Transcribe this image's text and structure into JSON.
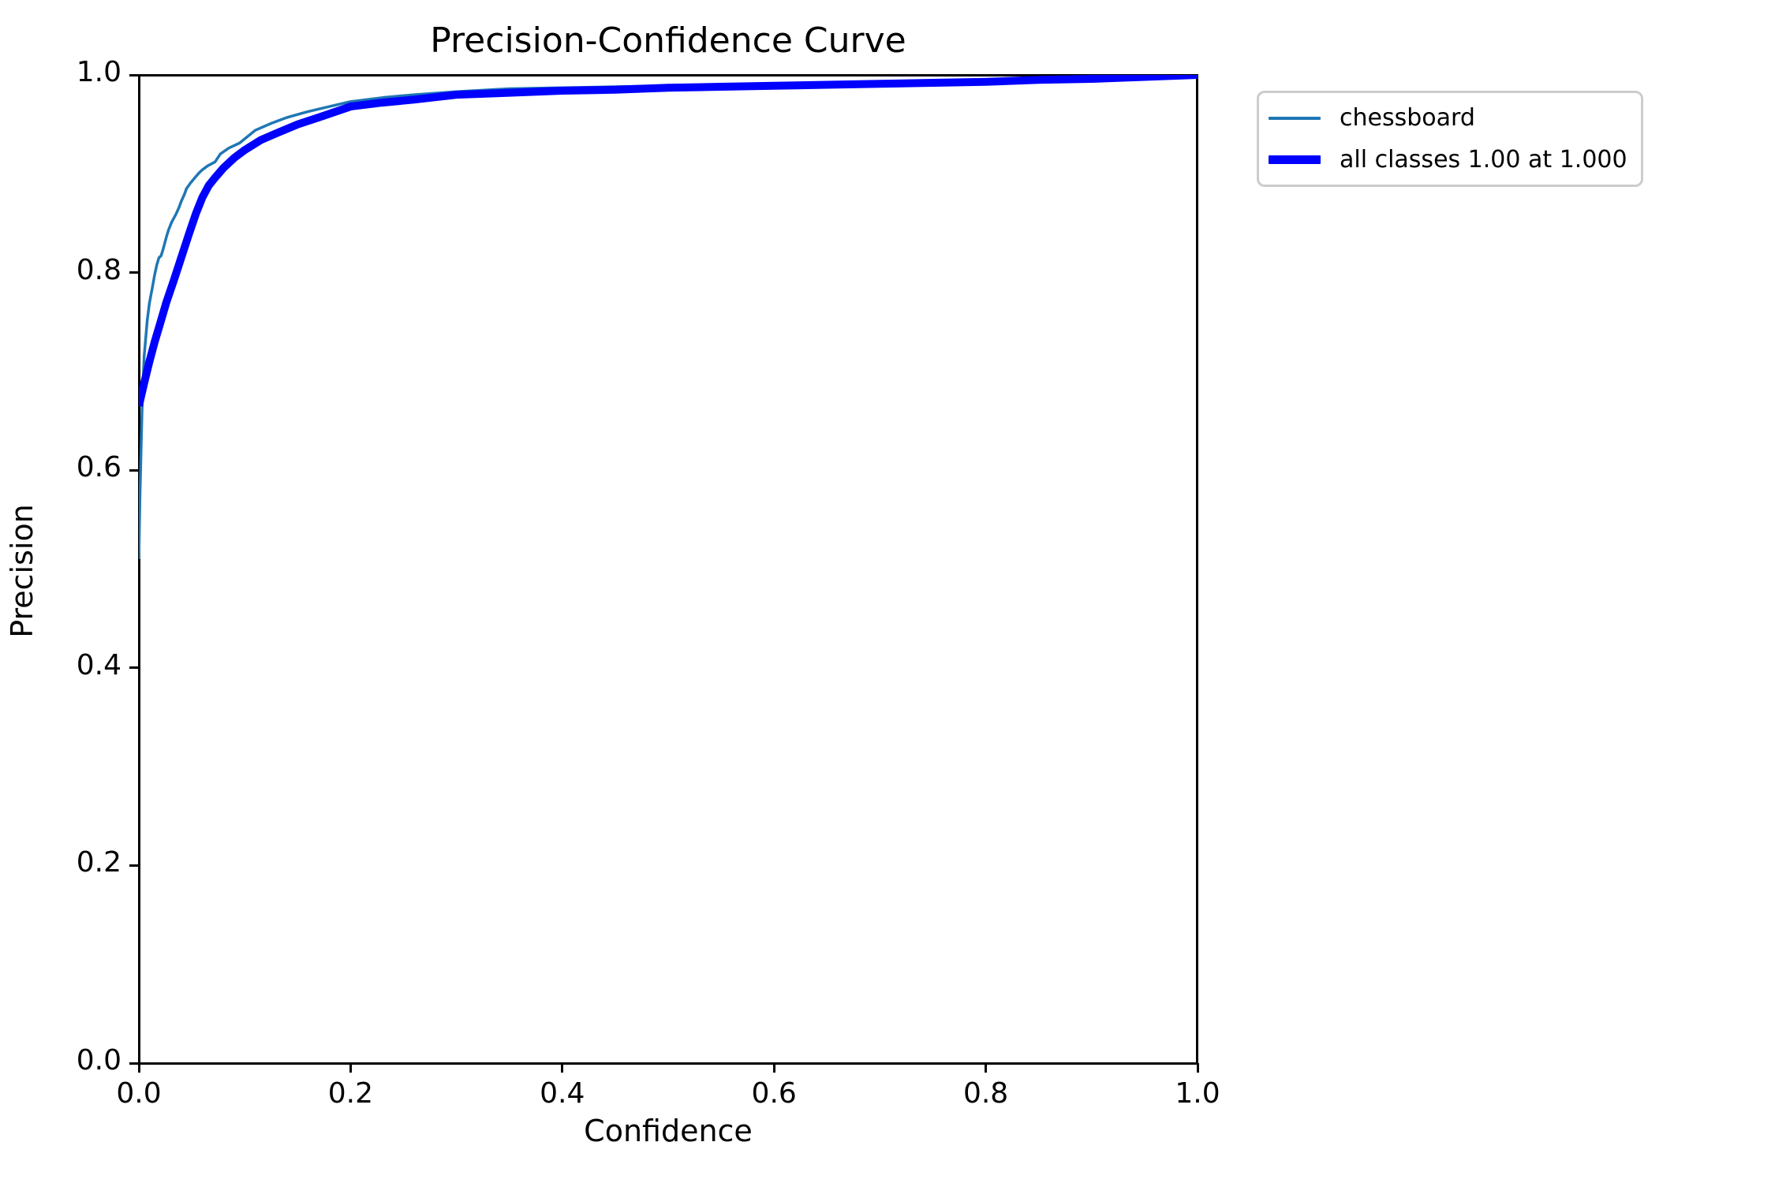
{
  "title": "Precision-Confidence Curve",
  "axes": {
    "x_label": "Confidence",
    "y_label": "Precision"
  },
  "legend": {
    "entries": [
      {
        "label": "chessboard",
        "color": "#1f77b4",
        "style": "thin"
      },
      {
        "label": "all classes 1.00 at 1.000",
        "color": "#0000ff",
        "style": "thick"
      }
    ]
  },
  "chart_data": {
    "type": "line",
    "title": "Precision-Confidence Curve",
    "xlabel": "Confidence",
    "ylabel": "Precision",
    "xlim": [
      0.0,
      1.0
    ],
    "ylim": [
      0.0,
      1.0
    ],
    "x_ticks": [
      0.0,
      0.2,
      0.4,
      0.6,
      0.8,
      1.0
    ],
    "y_ticks": [
      0.0,
      0.2,
      0.4,
      0.6,
      0.8,
      1.0
    ],
    "grid": false,
    "legend_position": "outside upper right",
    "series": [
      {
        "name": "chessboard",
        "color": "#1f77b4",
        "linewidth": 3.5,
        "x": [
          0.0,
          0.001,
          0.003,
          0.005,
          0.008,
          0.01,
          0.013,
          0.015,
          0.017,
          0.019,
          0.021,
          0.023,
          0.026,
          0.028,
          0.031,
          0.035,
          0.038,
          0.04,
          0.043,
          0.045,
          0.049,
          0.053,
          0.057,
          0.06,
          0.065,
          0.072,
          0.077,
          0.085,
          0.095,
          0.11,
          0.125,
          0.14,
          0.16,
          0.18,
          0.2,
          0.23,
          0.26,
          0.3,
          0.35,
          0.4,
          0.45,
          0.5,
          0.55,
          0.6,
          0.65,
          0.7,
          0.75,
          0.8,
          0.85,
          0.9,
          0.95,
          1.0
        ],
        "y": [
          0.51,
          0.57,
          0.66,
          0.715,
          0.752,
          0.769,
          0.786,
          0.798,
          0.808,
          0.815,
          0.817,
          0.824,
          0.836,
          0.843,
          0.851,
          0.859,
          0.866,
          0.872,
          0.879,
          0.885,
          0.891,
          0.896,
          0.901,
          0.904,
          0.908,
          0.912,
          0.92,
          0.926,
          0.931,
          0.944,
          0.951,
          0.957,
          0.963,
          0.968,
          0.973,
          0.977,
          0.98,
          0.983,
          0.986,
          0.987,
          0.988,
          0.989,
          0.99,
          0.991,
          0.992,
          0.992,
          0.993,
          0.995,
          0.996,
          0.997,
          0.998,
          1.0
        ]
      },
      {
        "name": "all classes 1.00 at 1.000",
        "color": "#0000ff",
        "linewidth": 10,
        "x": [
          0.0,
          0.005,
          0.01,
          0.015,
          0.02,
          0.026,
          0.033,
          0.04,
          0.047,
          0.054,
          0.06,
          0.066,
          0.072,
          0.08,
          0.09,
          0.1,
          0.115,
          0.13,
          0.15,
          0.17,
          0.2,
          0.23,
          0.26,
          0.3,
          0.35,
          0.4,
          0.45,
          0.5,
          0.55,
          0.6,
          0.65,
          0.7,
          0.75,
          0.8,
          0.85,
          0.9,
          0.95,
          1.0
        ],
        "y": [
          0.665,
          0.688,
          0.71,
          0.73,
          0.748,
          0.77,
          0.792,
          0.815,
          0.838,
          0.86,
          0.876,
          0.888,
          0.896,
          0.906,
          0.916,
          0.924,
          0.934,
          0.941,
          0.95,
          0.957,
          0.968,
          0.972,
          0.975,
          0.98,
          0.982,
          0.984,
          0.985,
          0.987,
          0.988,
          0.989,
          0.99,
          0.991,
          0.992,
          0.993,
          0.995,
          0.996,
          0.998,
          1.0
        ]
      }
    ]
  }
}
